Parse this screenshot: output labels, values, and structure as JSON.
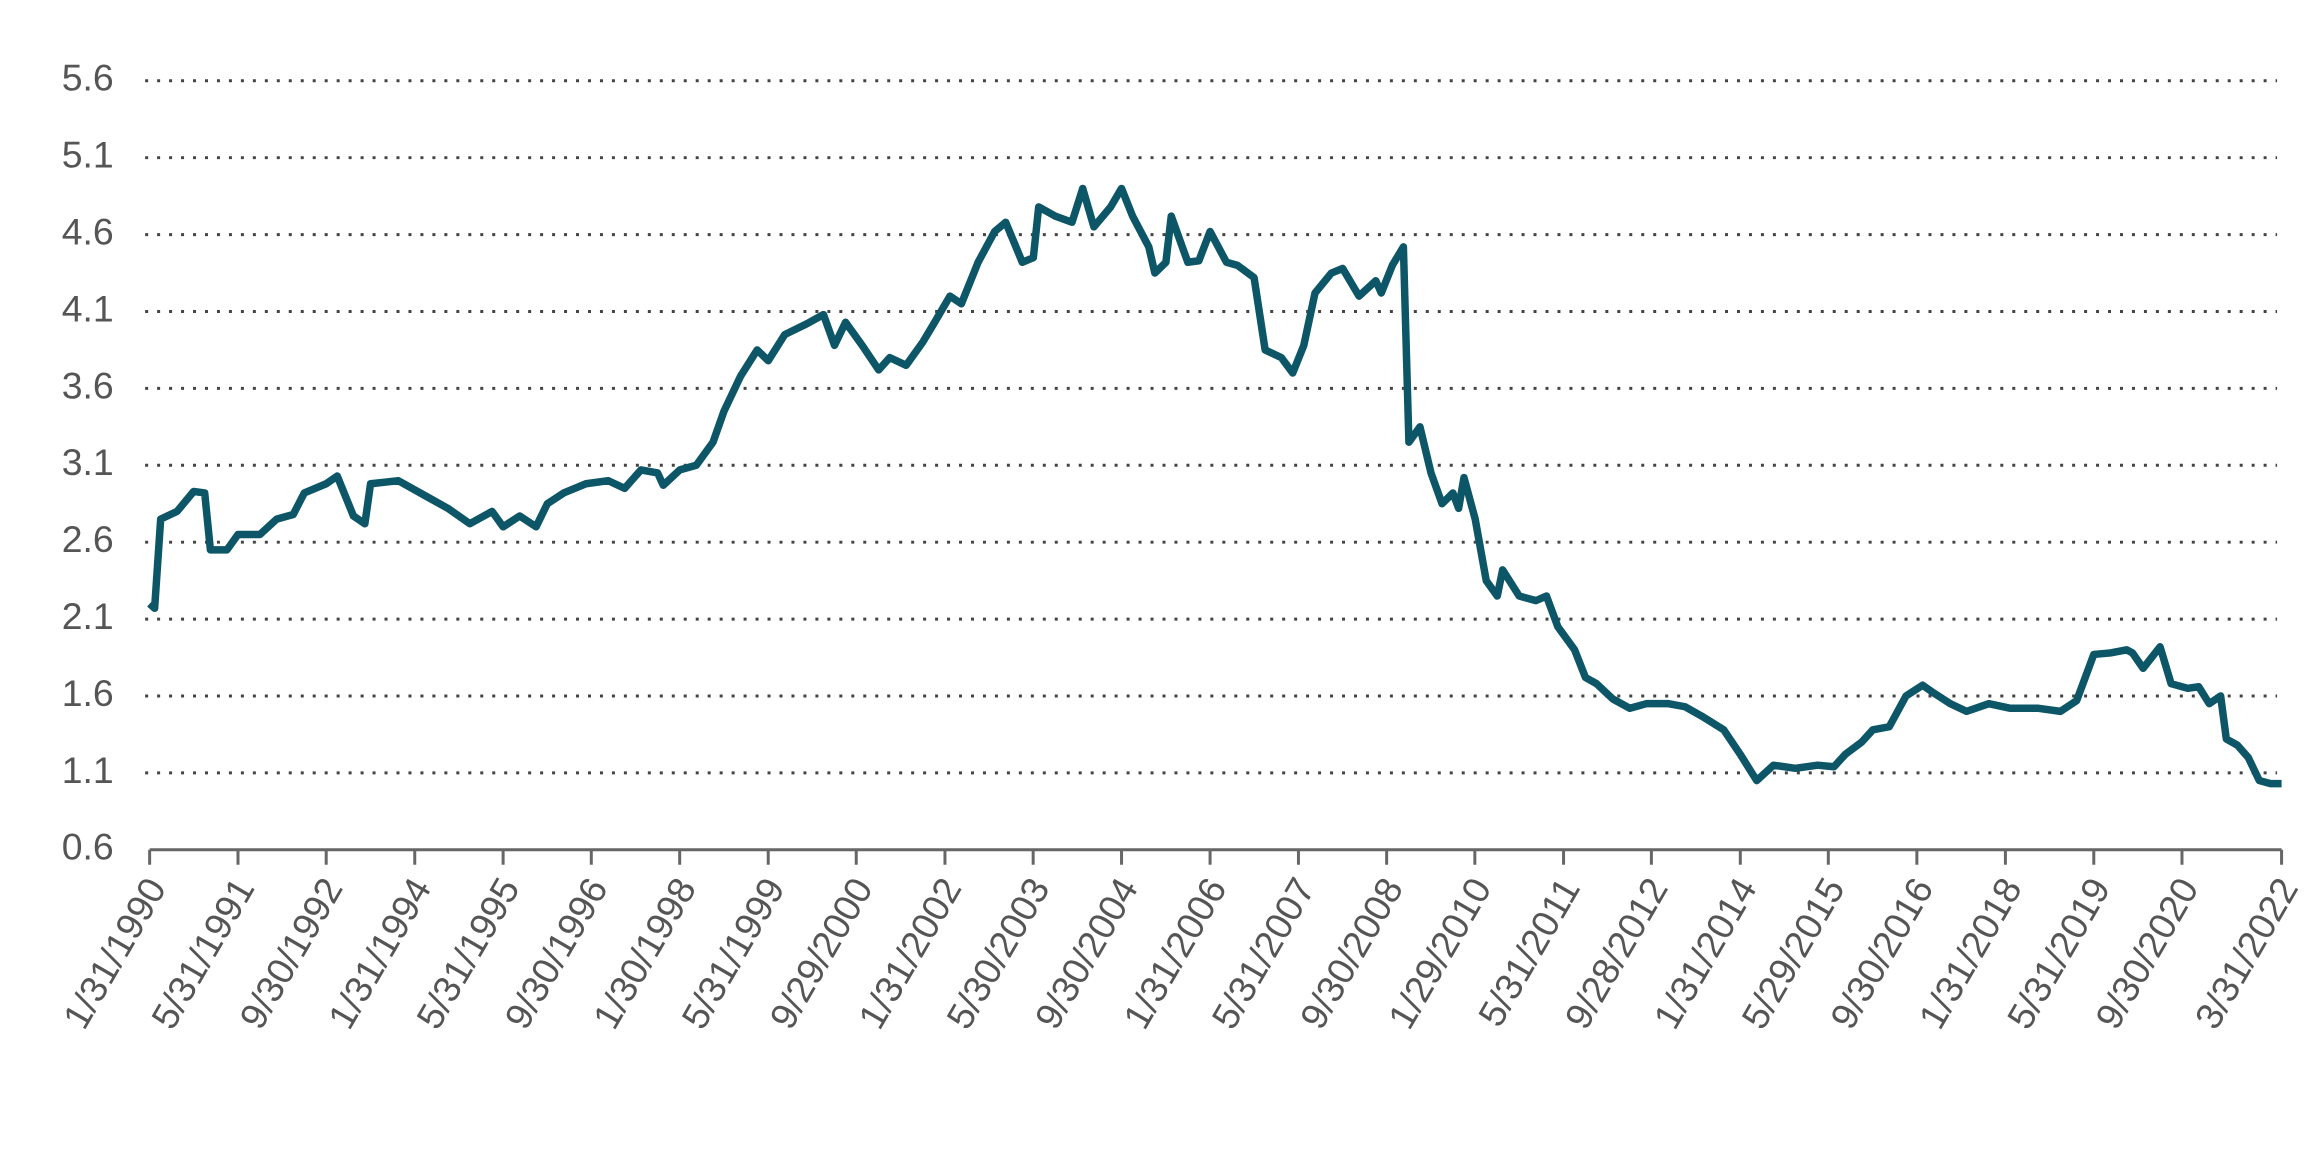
{
  "chart_data": {
    "type": "line",
    "color": "#0d5668",
    "grid": true,
    "xlim": [
      "1/31/1990",
      "3/31/2022"
    ],
    "xticks": [
      "1/31/1990",
      "5/31/1991",
      "9/30/1992",
      "1/31/1994",
      "5/31/1995",
      "9/30/1996",
      "1/30/1998",
      "5/31/1999",
      "9/29/2000",
      "1/31/2002",
      "5/30/2003",
      "9/30/2004",
      "1/31/2006",
      "5/31/2007",
      "9/30/2008",
      "1/29/2010",
      "5/31/2011",
      "9/28/2012",
      "1/31/2014",
      "5/29/2015",
      "9/30/2016",
      "1/31/2018",
      "5/31/2019",
      "9/30/2020",
      "3/31/2022"
    ],
    "ylim": [
      0.6,
      5.6
    ],
    "yticks": [
      0.6,
      1.1,
      1.6,
      2.1,
      2.6,
      3.1,
      3.6,
      4.1,
      4.6,
      5.1,
      5.6
    ],
    "x": [
      "1/31/1990",
      "2/28/1990",
      "3/31/1990",
      "6/30/1990",
      "9/30/1990",
      "11/30/1990",
      "12/31/1990",
      "3/31/1991",
      "5/31/1991",
      "9/30/1991",
      "12/31/1991",
      "3/31/1992",
      "5/31/1992",
      "9/30/1992",
      "11/30/1992",
      "2/28/1993",
      "4/30/1993",
      "5/31/1993",
      "10/31/1993",
      "3/31/1994",
      "7/31/1994",
      "11/30/1994",
      "3/31/1995",
      "5/31/1995",
      "8/31/1995",
      "11/30/1995",
      "1/31/1996",
      "4/30/1996",
      "8/31/1996",
      "12/31/1996",
      "3/31/1997",
      "6/30/1997",
      "9/30/1997",
      "10/31/1997",
      "1/31/1998",
      "4/30/1998",
      "7/31/1998",
      "9/30/1998",
      "12/31/1998",
      "3/31/1999",
      "5/31/1999",
      "8/31/1999",
      "12/31/1999",
      "3/31/2000",
      "5/31/2000",
      "7/31/2000",
      "10/31/2000",
      "1/31/2001",
      "3/31/2001",
      "6/30/2001",
      "9/30/2001",
      "11/30/2001",
      "2/28/2002",
      "4/30/2002",
      "7/31/2002",
      "10/31/2002",
      "12/31/2002",
      "3/31/2003",
      "5/31/2003",
      "6/30/2003",
      "9/30/2003",
      "12/31/2003",
      "2/29/2004",
      "4/30/2004",
      "7/31/2004",
      "9/30/2004",
      "11/30/2004",
      "2/28/2005",
      "3/31/2005",
      "5/31/2005",
      "6/30/2005",
      "9/30/2005",
      "11/30/2005",
      "1/31/2006",
      "4/30/2006",
      "6/30/2006",
      "9/30/2006",
      "11/30/2006",
      "2/28/2007",
      "4/30/2007",
      "6/30/2007",
      "8/31/2007",
      "11/30/2007",
      "1/31/2008",
      "4/30/2008",
      "7/31/2008",
      "8/31/2008",
      "10/31/2008",
      "12/31/2008",
      "1/31/2009",
      "3/31/2009",
      "5/31/2009",
      "7/31/2009",
      "9/30/2009",
      "10/31/2009",
      "11/30/2009",
      "1/31/2010",
      "3/31/2010",
      "5/31/2010",
      "6/30/2010",
      "9/30/2010",
      "12/31/2010",
      "2/28/2011",
      "4/30/2011",
      "7/31/2011",
      "9/30/2011",
      "11/30/2011",
      "2/29/2012",
      "5/31/2012",
      "8/31/2012",
      "12/31/2012",
      "3/31/2013",
      "6/30/2013",
      "10/31/2013",
      "1/31/2014",
      "4/30/2014",
      "7/31/2014",
      "11/30/2014",
      "3/31/2015",
      "6/30/2015",
      "8/31/2015",
      "11/30/2015",
      "1/31/2016",
      "4/30/2016",
      "7/31/2016",
      "10/31/2016",
      "12/31/2016",
      "3/31/2017",
      "6/30/2017",
      "10/31/2017",
      "2/28/2018",
      "7/31/2018",
      "11/30/2018",
      "2/28/2019",
      "5/31/2019",
      "8/31/2019",
      "11/30/2019",
      "12/31/2019",
      "2/29/2020",
      "5/31/2020",
      "7/31/2020",
      "10/31/2020",
      "12/31/2020",
      "2/28/2021",
      "4/30/2021",
      "5/31/2021",
      "7/31/2021",
      "9/30/2021",
      "11/30/2021",
      "1/31/2022",
      "3/31/2022"
    ],
    "values": [
      2.2,
      2.17,
      2.75,
      2.8,
      2.93,
      2.92,
      2.55,
      2.55,
      2.65,
      2.65,
      2.75,
      2.78,
      2.92,
      2.98,
      3.03,
      2.77,
      2.72,
      2.98,
      3.0,
      2.9,
      2.82,
      2.72,
      2.8,
      2.7,
      2.77,
      2.7,
      2.85,
      2.92,
      2.98,
      3.0,
      2.95,
      3.07,
      3.05,
      2.97,
      3.07,
      3.1,
      3.25,
      3.45,
      3.68,
      3.85,
      3.78,
      3.95,
      4.02,
      4.08,
      3.88,
      4.03,
      3.88,
      3.72,
      3.8,
      3.75,
      3.9,
      4.02,
      4.2,
      4.15,
      4.42,
      4.62,
      4.68,
      4.42,
      4.45,
      4.78,
      4.72,
      4.68,
      4.9,
      4.65,
      4.78,
      4.9,
      4.72,
      4.52,
      4.35,
      4.42,
      4.72,
      4.42,
      4.43,
      4.62,
      4.42,
      4.4,
      4.32,
      3.85,
      3.8,
      3.7,
      3.88,
      4.22,
      4.35,
      4.38,
      4.2,
      4.3,
      4.22,
      4.4,
      4.52,
      3.25,
      3.35,
      3.05,
      2.85,
      2.92,
      2.82,
      3.02,
      2.75,
      2.35,
      2.25,
      2.42,
      2.25,
      2.22,
      2.25,
      2.05,
      1.9,
      1.72,
      1.68,
      1.58,
      1.52,
      1.55,
      1.55,
      1.53,
      1.47,
      1.38,
      1.22,
      1.05,
      1.15,
      1.13,
      1.15,
      1.14,
      1.22,
      1.3,
      1.38,
      1.4,
      1.6,
      1.67,
      1.62,
      1.55,
      1.5,
      1.55,
      1.52,
      1.52,
      1.5,
      1.57,
      1.87,
      1.88,
      1.9,
      1.88,
      1.78,
      1.92,
      1.68,
      1.65,
      1.66,
      1.55,
      1.6,
      1.32,
      1.28,
      1.2,
      1.05,
      1.03,
      1.03
    ]
  }
}
